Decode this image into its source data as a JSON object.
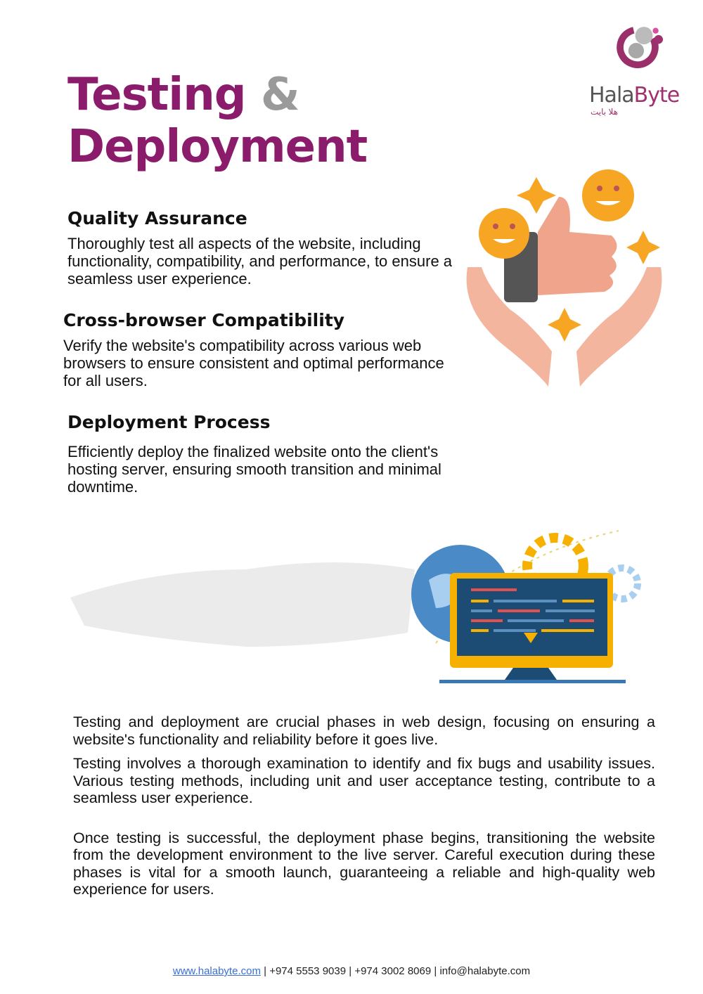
{
  "title": {
    "line1": "Testing",
    "amp": "&",
    "line2": "Deployment"
  },
  "logo": {
    "name_part1": "Hala",
    "name_part2": "Byte",
    "arabic": "هلا بايت"
  },
  "sections": [
    {
      "heading": "Quality Assurance",
      "text": "Thoroughly test all aspects of the website, including functionality, compatibility, and performance, to ensure a seamless user experience."
    },
    {
      "heading": "Cross-browser Compatibility",
      "text": "Verify the website's compatibility across various web browsers to ensure consistent and optimal performance for all users."
    },
    {
      "heading": "Deployment Process",
      "text": "Efficiently deploy the finalized website onto the client's hosting server, ensuring smooth transition and minimal downtime."
    }
  ],
  "paragraphs": [
    "Testing and deployment are crucial phases in web design, focusing on ensuring a website's functionality and reliability before it goes live.",
    "Testing involves a thorough examination to identify and fix bugs and usability issues. Various testing methods, including unit and user acceptance testing, contribute to a seamless user experience.",
    "Once testing is successful, the deployment phase begins, transitioning the website from the development environment to the live server. Careful execution during these phases is vital for a smooth launch, guaranteeing a reliable and high-quality web experience for users."
  ],
  "footer": {
    "website": "www.halabyte.com",
    "phone1": "+974 5553 9039",
    "phone2": "+974 3002 8069",
    "email": "info@halabyte.com",
    "separator": "|"
  },
  "colors": {
    "brand": "#8b1c6b",
    "accent_gray": "#9a9a9a",
    "link": "#3a6fd8"
  }
}
